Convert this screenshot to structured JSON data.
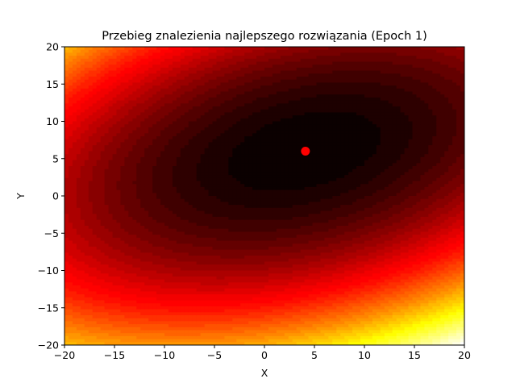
{
  "chart_data": {
    "type": "contour",
    "title": "Przebieg znalezienia najlepszego rozwiązania (Epoch 1)",
    "xlabel": "X",
    "ylabel": "Y",
    "xlim": [
      -20,
      20
    ],
    "ylim": [
      -20,
      20
    ],
    "xticks": [
      -20,
      -15,
      -10,
      -5,
      0,
      5,
      10,
      15,
      20
    ],
    "yticks": [
      -20,
      -15,
      -10,
      -5,
      0,
      5,
      10,
      15,
      20
    ],
    "xtick_labels": [
      "−20",
      "−15",
      "−10",
      "−5",
      "0",
      "5",
      "10",
      "15",
      "20"
    ],
    "ytick_labels": [
      "−20",
      "−15",
      "−10",
      "−5",
      "0",
      "5",
      "10",
      "15",
      "20"
    ],
    "colormap": "hot",
    "surface": {
      "center": [
        4,
        6
      ],
      "coeff_x2": 1,
      "coeff_y2": 2,
      "coeff_xy": -1
    },
    "grid": false,
    "points": [
      {
        "x": 4.1,
        "y": 6.0,
        "color": "#ff0000"
      }
    ]
  }
}
